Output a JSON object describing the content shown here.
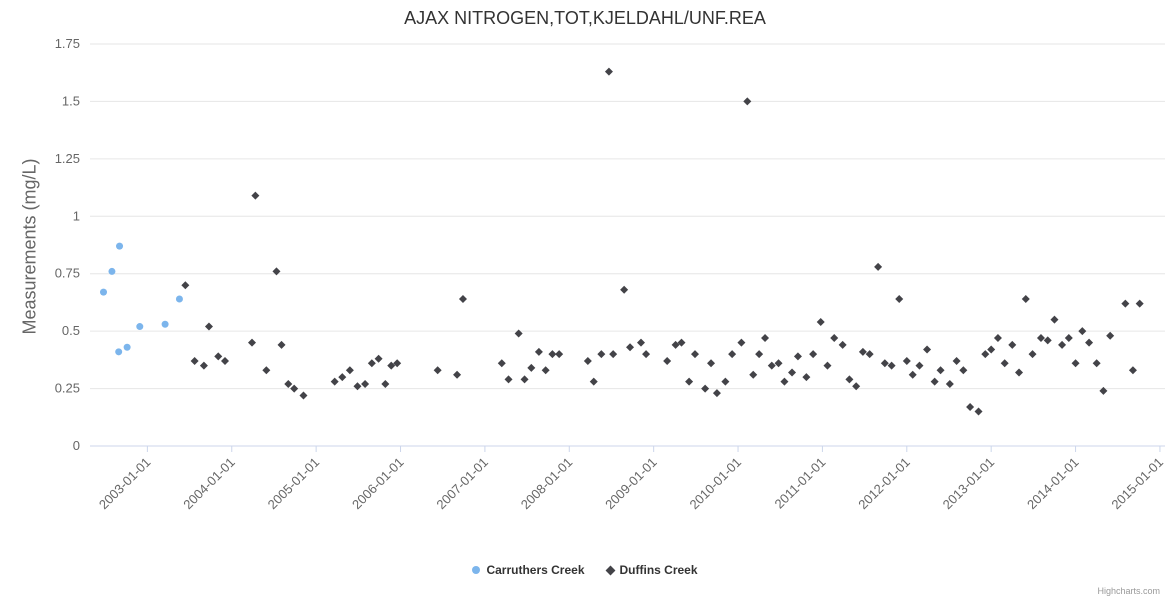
{
  "credits": "Highcharts.com",
  "chart_data": {
    "type": "scatter",
    "title": "AJAX NITROGEN,TOT,KJELDAHL/UNF.REA",
    "xlabel": "",
    "ylabel": "Measurements (mg/L)",
    "grid": true,
    "legend_position": "bottom",
    "xlim": [
      2002.32,
      2015.06
    ],
    "ylim": [
      0,
      1.75
    ],
    "yticks": [
      0,
      0.25,
      0.5,
      0.75,
      1,
      1.25,
      1.5,
      1.75
    ],
    "ytick_labels": [
      "0",
      "0.25",
      "0.5",
      "0.75",
      "1",
      "1.25",
      "1.5",
      "1.75"
    ],
    "xticks": [
      2003,
      2004,
      2005,
      2006,
      2007,
      2008,
      2009,
      2010,
      2011,
      2012,
      2013,
      2014,
      2015
    ],
    "xtick_labels": [
      "2003-01-01",
      "2004-01-01",
      "2005-01-01",
      "2006-01-01",
      "2007-01-01",
      "2008-01-01",
      "2009-01-01",
      "2010-01-01",
      "2011-01-01",
      "2012-01-01",
      "2013-01-01",
      "2014-01-01",
      "2015-01-01"
    ],
    "series": [
      {
        "name": "Carruthers Creek",
        "color": "#7cb5ec",
        "marker": "circle",
        "points": [
          [
            2002.48,
            0.67
          ],
          [
            2002.58,
            0.76
          ],
          [
            2002.67,
            0.87
          ],
          [
            2002.66,
            0.41
          ],
          [
            2002.76,
            0.43
          ],
          [
            2002.91,
            0.52
          ],
          [
            2003.21,
            0.53
          ],
          [
            2003.38,
            0.64
          ]
        ]
      },
      {
        "name": "Duffins Creek",
        "color": "#434348",
        "marker": "diamond",
        "points": [
          [
            2003.45,
            0.7
          ],
          [
            2003.56,
            0.37
          ],
          [
            2003.67,
            0.35
          ],
          [
            2003.73,
            0.52
          ],
          [
            2003.84,
            0.39
          ],
          [
            2003.92,
            0.37
          ],
          [
            2004.24,
            0.45
          ],
          [
            2004.28,
            1.09
          ],
          [
            2004.41,
            0.33
          ],
          [
            2004.53,
            0.76
          ],
          [
            2004.59,
            0.44
          ],
          [
            2004.67,
            0.27
          ],
          [
            2004.74,
            0.25
          ],
          [
            2004.85,
            0.22
          ],
          [
            2005.22,
            0.28
          ],
          [
            2005.31,
            0.3
          ],
          [
            2005.4,
            0.33
          ],
          [
            2005.49,
            0.26
          ],
          [
            2005.58,
            0.27
          ],
          [
            2005.66,
            0.36
          ],
          [
            2005.74,
            0.38
          ],
          [
            2005.82,
            0.27
          ],
          [
            2005.89,
            0.35
          ],
          [
            2005.96,
            0.36
          ],
          [
            2006.44,
            0.33
          ],
          [
            2006.67,
            0.31
          ],
          [
            2006.74,
            0.64
          ],
          [
            2007.2,
            0.36
          ],
          [
            2007.28,
            0.29
          ],
          [
            2007.4,
            0.49
          ],
          [
            2007.47,
            0.29
          ],
          [
            2007.55,
            0.34
          ],
          [
            2007.64,
            0.41
          ],
          [
            2007.72,
            0.33
          ],
          [
            2007.8,
            0.4
          ],
          [
            2007.88,
            0.4
          ],
          [
            2008.22,
            0.37
          ],
          [
            2008.29,
            0.28
          ],
          [
            2008.38,
            0.4
          ],
          [
            2008.47,
            1.63
          ],
          [
            2008.52,
            0.4
          ],
          [
            2008.65,
            0.68
          ],
          [
            2008.72,
            0.43
          ],
          [
            2008.85,
            0.45
          ],
          [
            2008.91,
            0.4
          ],
          [
            2009.16,
            0.37
          ],
          [
            2009.26,
            0.44
          ],
          [
            2009.33,
            0.45
          ],
          [
            2009.42,
            0.28
          ],
          [
            2009.49,
            0.4
          ],
          [
            2009.61,
            0.25
          ],
          [
            2009.68,
            0.36
          ],
          [
            2009.75,
            0.23
          ],
          [
            2009.85,
            0.28
          ],
          [
            2009.93,
            0.4
          ],
          [
            2010.04,
            0.45
          ],
          [
            2010.11,
            1.5
          ],
          [
            2010.18,
            0.31
          ],
          [
            2010.25,
            0.4
          ],
          [
            2010.32,
            0.47
          ],
          [
            2010.4,
            0.35
          ],
          [
            2010.48,
            0.36
          ],
          [
            2010.55,
            0.28
          ],
          [
            2010.64,
            0.32
          ],
          [
            2010.71,
            0.39
          ],
          [
            2010.81,
            0.3
          ],
          [
            2010.89,
            0.4
          ],
          [
            2010.98,
            0.54
          ],
          [
            2011.06,
            0.35
          ],
          [
            2011.14,
            0.47
          ],
          [
            2011.24,
            0.44
          ],
          [
            2011.32,
            0.29
          ],
          [
            2011.4,
            0.26
          ],
          [
            2011.48,
            0.41
          ],
          [
            2011.56,
            0.4
          ],
          [
            2011.66,
            0.78
          ],
          [
            2011.74,
            0.36
          ],
          [
            2011.82,
            0.35
          ],
          [
            2011.91,
            0.64
          ],
          [
            2012.0,
            0.37
          ],
          [
            2012.07,
            0.31
          ],
          [
            2012.15,
            0.35
          ],
          [
            2012.24,
            0.42
          ],
          [
            2012.33,
            0.28
          ],
          [
            2012.4,
            0.33
          ],
          [
            2012.51,
            0.27
          ],
          [
            2012.59,
            0.37
          ],
          [
            2012.67,
            0.33
          ],
          [
            2012.75,
            0.17
          ],
          [
            2012.85,
            0.15
          ],
          [
            2012.93,
            0.4
          ],
          [
            2013.0,
            0.42
          ],
          [
            2013.08,
            0.47
          ],
          [
            2013.16,
            0.36
          ],
          [
            2013.25,
            0.44
          ],
          [
            2013.33,
            0.32
          ],
          [
            2013.41,
            0.64
          ],
          [
            2013.49,
            0.4
          ],
          [
            2013.59,
            0.47
          ],
          [
            2013.67,
            0.46
          ],
          [
            2013.75,
            0.55
          ],
          [
            2013.84,
            0.44
          ],
          [
            2013.92,
            0.47
          ],
          [
            2014.0,
            0.36
          ],
          [
            2014.08,
            0.5
          ],
          [
            2014.16,
            0.45
          ],
          [
            2014.25,
            0.36
          ],
          [
            2014.33,
            0.24
          ],
          [
            2014.41,
            0.48
          ],
          [
            2014.59,
            0.62
          ],
          [
            2014.68,
            0.33
          ],
          [
            2014.76,
            0.62
          ]
        ]
      }
    ]
  }
}
